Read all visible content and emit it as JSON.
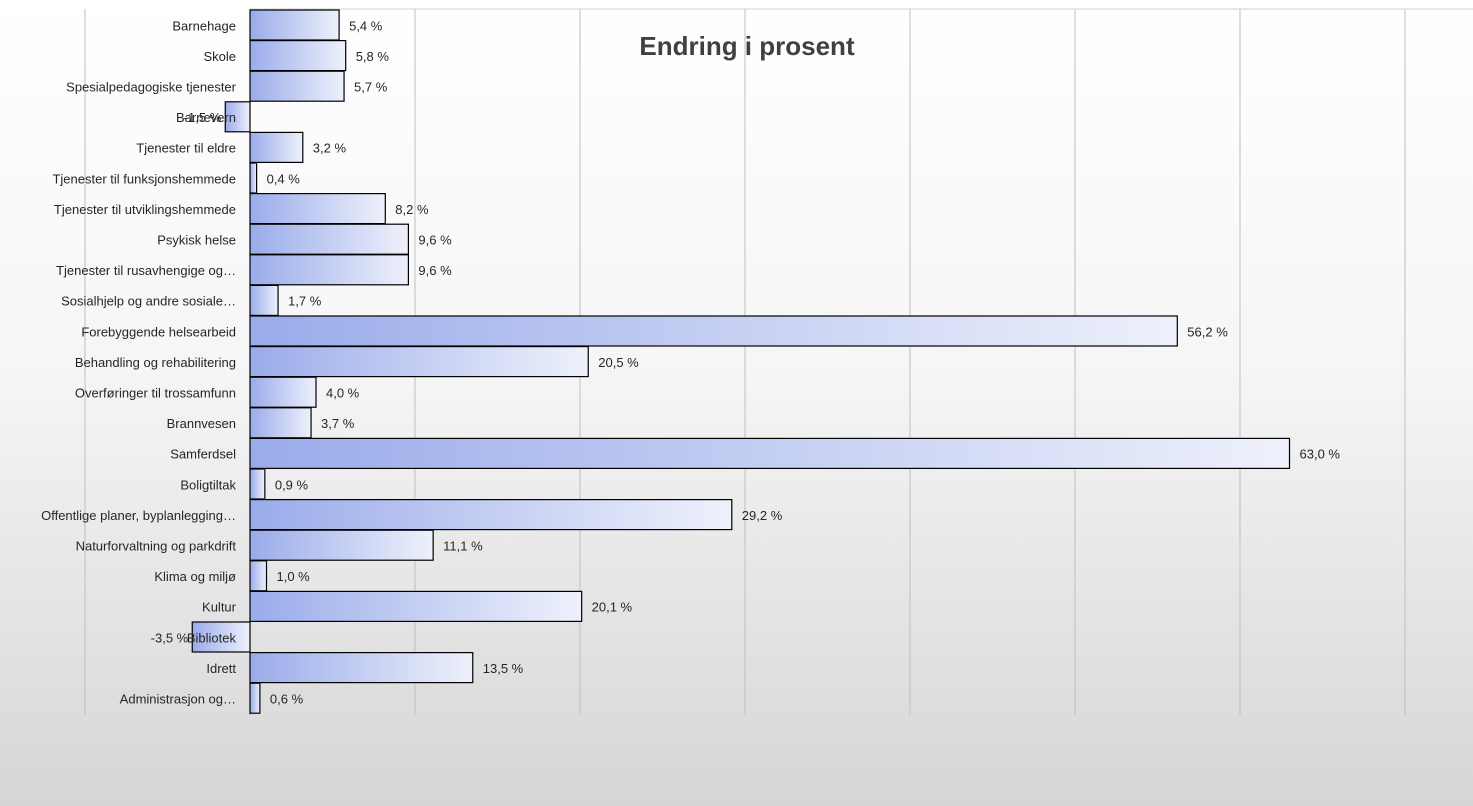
{
  "chart_data": {
    "type": "bar",
    "orientation": "horizontal",
    "title": "Endring i prosent",
    "categories": [
      "Barnehage",
      "Skole",
      "Spesialpedagogiske tjenester",
      "Barnevern",
      "Tjenester til eldre",
      "Tjenester til funksjonshemmede",
      "Tjenester til utviklingshemmede",
      "Psykisk helse",
      "Tjenester til rusavhengige og…",
      "Sosialhjelp og andre sosiale…",
      "Forebyggende helsearbeid",
      "Behandling og rehabilitering",
      "Overføringer til trossamfunn",
      "Brannvesen",
      "Samferdsel",
      "Boligtiltak",
      "Offentlige planer, byplanlegging…",
      "Naturforvaltning og parkdrift",
      "Klima og miljø",
      "Kultur",
      "Bibliotek",
      "Idrett",
      "Administrasjon og…"
    ],
    "values": [
      5.4,
      5.8,
      5.7,
      -1.5,
      3.2,
      0.4,
      8.2,
      9.6,
      9.6,
      1.7,
      56.2,
      20.5,
      4.0,
      3.7,
      63.0,
      0.9,
      29.2,
      11.1,
      1.0,
      20.1,
      -3.5,
      13.5,
      0.6
    ],
    "data_labels": [
      "5,4 %",
      "5,8 %",
      "5,7 %",
      "-1,5 %",
      "3,2 %",
      "0,4 %",
      "8,2 %",
      "9,6 %",
      "9,6 %",
      "1,7 %",
      "56,2 %",
      "20,5 %",
      "4,0 %",
      "3,7 %",
      "63,0 %",
      "0,9 %",
      "29,2 %",
      "11,1 %",
      "1,0 %",
      "20,1 %",
      "-3,5 %",
      "13,5 %",
      "0,6 %"
    ],
    "xlim": [
      -10,
      70
    ],
    "x_gridline_step": 10,
    "grid": true,
    "legend": "none",
    "colors": {
      "bar_fill_start": "#9aabea",
      "bar_fill_end": "#eef1fb",
      "bar_stroke": "#000000",
      "gridline": "#bfbfbf",
      "title": "#404040",
      "text": "#262626"
    }
  }
}
